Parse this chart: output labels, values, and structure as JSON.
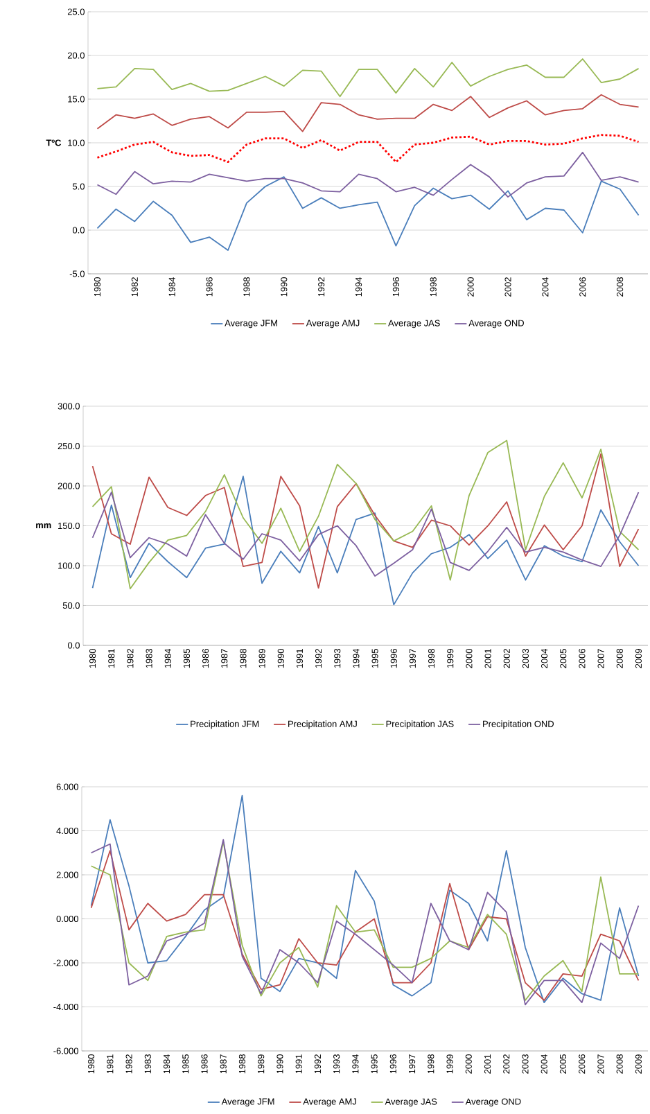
{
  "chart_data": [
    {
      "type": "line",
      "ylabel": "TºC",
      "categories": [
        "1980",
        null,
        "1982",
        null,
        "1984",
        null,
        "1986",
        null,
        "1988",
        null,
        "1990",
        null,
        "1992",
        null,
        "1994",
        null,
        "1996",
        null,
        "1998",
        null,
        "2000",
        null,
        "2002",
        null,
        "2004",
        null,
        "2006",
        null,
        "2008",
        null
      ],
      "ylim": [
        -5,
        25
      ],
      "yticks": [
        {
          "value": -5,
          "label": "-5.0"
        },
        {
          "value": 0,
          "label": "0.0"
        },
        {
          "value": 5,
          "label": "5.0"
        },
        {
          "value": 10,
          "label": "10.0"
        },
        {
          "value": 15,
          "label": "15.0"
        },
        {
          "value": 20,
          "label": "20.0"
        },
        {
          "value": 25,
          "label": "25.0"
        }
      ],
      "grid": "y",
      "legend": "bottom",
      "marker": "none",
      "series": [
        {
          "name": "Average JFM",
          "color": "#4a7ebb",
          "values": [
            0.2,
            2.4,
            1.0,
            3.3,
            1.7,
            -1.4,
            -0.8,
            -2.3,
            3.1,
            5.0,
            6.1,
            2.5,
            3.7,
            2.5,
            2.9,
            3.2,
            -1.8,
            2.8,
            4.8,
            3.6,
            4.0,
            2.4,
            4.5,
            1.2,
            2.5,
            2.3,
            -0.3,
            5.6,
            4.7,
            1.7
          ]
        },
        {
          "name": "Average AMJ",
          "color": "#be4b48",
          "values": [
            11.6,
            13.2,
            12.8,
            13.3,
            12.0,
            12.7,
            13.0,
            11.7,
            13.5,
            13.5,
            13.6,
            11.3,
            14.6,
            14.4,
            13.2,
            12.7,
            12.8,
            12.8,
            14.4,
            13.7,
            15.3,
            12.9,
            14.0,
            14.8,
            13.2,
            13.7,
            13.9,
            15.5,
            14.4,
            14.1
          ]
        },
        {
          "name": "Average JAS",
          "color": "#98b954",
          "values": [
            16.2,
            16.4,
            18.5,
            18.4,
            16.1,
            16.8,
            15.9,
            16.0,
            16.8,
            17.6,
            16.5,
            18.3,
            18.2,
            15.3,
            18.4,
            18.4,
            15.7,
            18.5,
            16.4,
            19.2,
            16.5,
            17.6,
            18.4,
            18.9,
            17.5,
            17.5,
            19.6,
            16.9,
            17.3,
            18.5
          ]
        },
        {
          "name": "Average OND",
          "color": "#7d60a0",
          "values": [
            5.2,
            4.1,
            6.7,
            5.3,
            5.6,
            5.5,
            6.4,
            6.0,
            5.6,
            5.9,
            5.9,
            5.4,
            4.5,
            4.4,
            6.4,
            5.9,
            4.4,
            4.9,
            4.0,
            5.8,
            7.5,
            6.1,
            3.8,
            5.4,
            6.1,
            6.2,
            8.9,
            5.7,
            6.1,
            5.5
          ]
        },
        {
          "color": "#ff0000",
          "line_style": "dashed",
          "values": [
            8.3,
            9.0,
            9.8,
            10.1,
            8.9,
            8.5,
            8.6,
            7.8,
            9.8,
            10.5,
            10.5,
            9.4,
            10.3,
            9.1,
            10.1,
            10.1,
            7.8,
            9.8,
            10.0,
            10.6,
            10.7,
            9.8,
            10.2,
            10.2,
            9.8,
            9.9,
            10.5,
            10.9,
            10.8,
            10.1
          ]
        }
      ]
    },
    {
      "type": "line",
      "ylabel": "mm",
      "categories": [
        "1980",
        "1981",
        "1982",
        "1983",
        "1984",
        "1985",
        "1986",
        "1987",
        "1988",
        "1989",
        "1990",
        "1991",
        "1992",
        "1993",
        "1994",
        "1995",
        "1996",
        "1997",
        "1998",
        "1999",
        "2000",
        "2001",
        "2002",
        "2003",
        "2004",
        "2005",
        "2006",
        "2007",
        "2008",
        "2009"
      ],
      "ylim": [
        0,
        300
      ],
      "yticks": [
        {
          "value": 0,
          "label": "0.0"
        },
        {
          "value": 50,
          "label": "50.0"
        },
        {
          "value": 100,
          "label": "100.0"
        },
        {
          "value": 150,
          "label": "150.0"
        },
        {
          "value": 200,
          "label": "200.0"
        },
        {
          "value": 250,
          "label": "250.0"
        },
        {
          "value": 300,
          "label": "300.0"
        }
      ],
      "grid": "y",
      "legend": "bottom",
      "marker": "none",
      "series": [
        {
          "name": "Precipitation JFM",
          "color": "#4a7ebb",
          "values": [
            72,
            176,
            85,
            128,
            105,
            85,
            122,
            127,
            212,
            78,
            118,
            91,
            149,
            91,
            158,
            166,
            51,
            91,
            115,
            123,
            139,
            109,
            132,
            82,
            125,
            112,
            105,
            170,
            130,
            100
          ]
        },
        {
          "name": "Precipitation AMJ",
          "color": "#be4b48",
          "values": [
            225,
            140,
            127,
            211,
            173,
            163,
            188,
            198,
            99,
            104,
            212,
            175,
            72,
            174,
            203,
            163,
            131,
            123,
            157,
            150,
            126,
            150,
            180,
            112,
            151,
            120,
            150,
            240,
            99,
            146
          ]
        },
        {
          "name": "Precipitation JAS",
          "color": "#98b954",
          "values": [
            174,
            199,
            71,
            104,
            132,
            138,
            168,
            214,
            160,
            128,
            172,
            118,
            162,
            227,
            203,
            158,
            131,
            143,
            175,
            82,
            188,
            242,
            257,
            120,
            187,
            229,
            185,
            246,
            143,
            120
          ]
        },
        {
          "name": "Precipitation OND",
          "color": "#7d60a0",
          "values": [
            135,
            192,
            110,
            135,
            127,
            112,
            164,
            128,
            108,
            140,
            132,
            106,
            139,
            150,
            125,
            87,
            103,
            120,
            171,
            104,
            94,
            118,
            148,
            117,
            123,
            117,
            107,
            99,
            138,
            192
          ]
        }
      ]
    },
    {
      "type": "line",
      "categories": [
        "1980",
        "1981",
        "1982",
        "1983",
        "1984",
        "1985",
        "1986",
        "1987",
        "1988",
        "1989",
        "1990",
        "1991",
        "1992",
        "1993",
        "1994",
        "1995",
        "1996",
        "1997",
        "1998",
        "1999",
        "2000",
        "2001",
        "2002",
        "2003",
        "2004",
        "2005",
        "2006",
        "2007",
        "2008",
        "2009"
      ],
      "ylim": [
        -6,
        6
      ],
      "yticks": [
        {
          "value": -6,
          "label": "-6.000"
        },
        {
          "value": -4,
          "label": "-4.000"
        },
        {
          "value": -2,
          "label": "-2.000"
        },
        {
          "value": 0,
          "label": "0.000"
        },
        {
          "value": 2,
          "label": "2.000"
        },
        {
          "value": 4,
          "label": "4.000"
        },
        {
          "value": 6,
          "label": "6.000"
        }
      ],
      "grid": "y",
      "legend": "bottom",
      "marker": "none",
      "series": [
        {
          "name": "Average JFM",
          "color": "#4a7ebb",
          "values": [
            0.6,
            4.5,
            1.5,
            -2.0,
            -1.9,
            -0.8,
            0.4,
            1.0,
            5.6,
            -2.7,
            -3.3,
            -1.8,
            -2.0,
            -2.7,
            2.2,
            0.8,
            -3.0,
            -3.5,
            -2.9,
            1.3,
            0.7,
            -1.0,
            3.1,
            -1.3,
            -3.8,
            -2.7,
            -3.4,
            -3.7,
            0.5,
            -2.6
          ]
        },
        {
          "name": "Average AMJ",
          "color": "#be4b48",
          "values": [
            0.5,
            3.1,
            -0.5,
            0.7,
            -0.1,
            0.2,
            1.1,
            1.1,
            -1.6,
            -3.2,
            -3.0,
            -0.9,
            -2.0,
            -2.1,
            -0.6,
            0.0,
            -2.9,
            -2.9,
            -2.0,
            1.6,
            -1.4,
            0.1,
            0.0,
            -2.9,
            -3.7,
            -2.5,
            -2.6,
            -0.7,
            -1.0,
            -2.8
          ]
        },
        {
          "name": "Average JAS",
          "color": "#98b954",
          "values": [
            2.4,
            2.0,
            -2.0,
            -2.8,
            -0.8,
            -0.6,
            -0.5,
            3.5,
            -1.2,
            -3.5,
            -2.0,
            -1.3,
            -3.1,
            0.6,
            -0.6,
            -0.5,
            -2.2,
            -2.2,
            -1.8,
            -1.0,
            -1.3,
            0.2,
            -0.7,
            -3.7,
            -2.6,
            -1.9,
            -3.3,
            1.9,
            -2.5,
            -2.5
          ]
        },
        {
          "name": "Average OND",
          "color": "#7d60a0",
          "values": [
            3.0,
            3.4,
            -3.0,
            -2.6,
            -1.0,
            -0.7,
            -0.2,
            3.6,
            -1.7,
            -3.4,
            -1.4,
            -2.0,
            -2.9,
            -0.1,
            -0.7,
            -1.4,
            -2.1,
            -2.9,
            0.7,
            -1.0,
            -1.4,
            1.2,
            0.3,
            -3.9,
            -2.8,
            -2.8,
            -3.8,
            -1.1,
            -1.8,
            0.6
          ]
        }
      ]
    }
  ]
}
